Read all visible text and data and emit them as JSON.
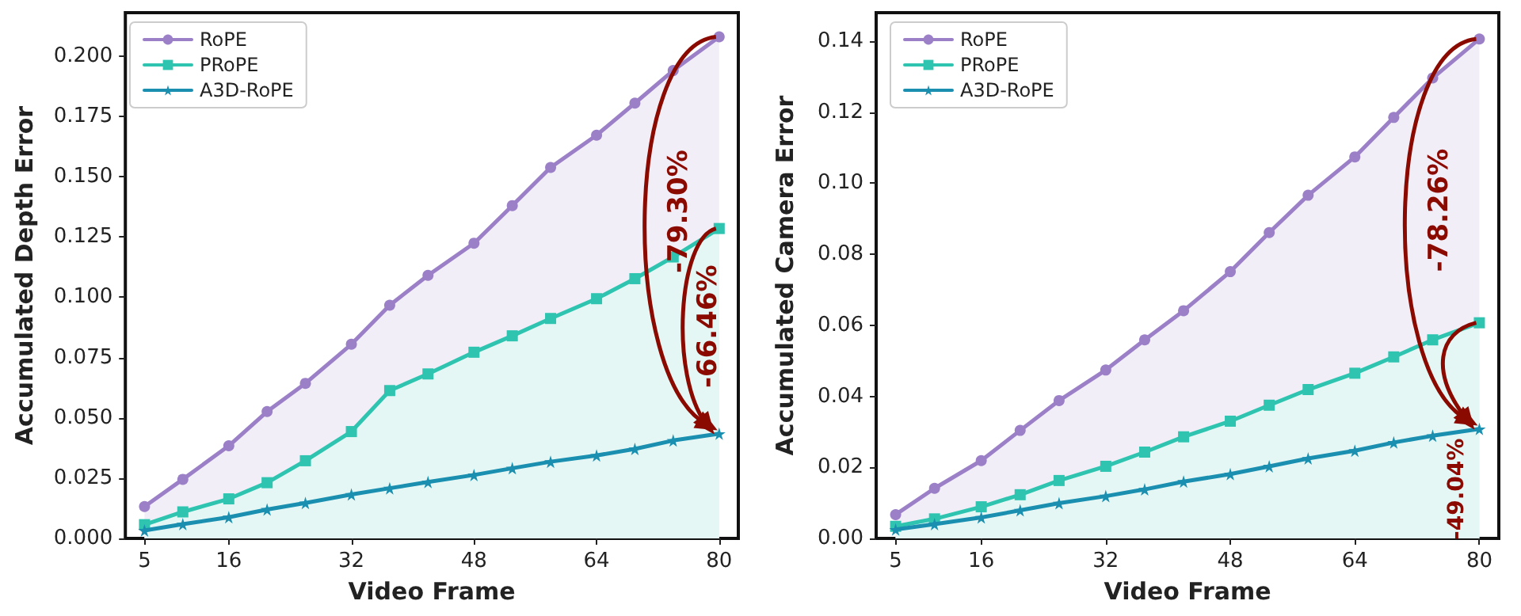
{
  "chart_data": [
    {
      "type": "line",
      "xlabel": "Video Frame",
      "ylabel": "Accumulated Depth Error",
      "legend": "top left",
      "grid": false,
      "line_style": "solid",
      "x": [
        5,
        10,
        16,
        21,
        26,
        32,
        37,
        42,
        48,
        53,
        58,
        64,
        69,
        74,
        80
      ],
      "xlim": [
        2.5,
        82.5
      ],
      "xticks": [
        5,
        16,
        32,
        48,
        64,
        80
      ],
      "ylim": [
        0,
        0.218
      ],
      "yticks": [
        {
          "value": 0,
          "label": "0.000"
        },
        {
          "value": 0.025,
          "label": "0.025"
        },
        {
          "value": 0.05,
          "label": "0.050"
        },
        {
          "value": 0.075,
          "label": "0.075"
        },
        {
          "value": 0.1,
          "label": "0.100"
        },
        {
          "value": 0.125,
          "label": "0.125"
        },
        {
          "value": 0.15,
          "label": "0.150"
        },
        {
          "value": 0.175,
          "label": "0.175"
        },
        {
          "value": 0.2,
          "label": "0.200"
        }
      ],
      "series": [
        {
          "name": "RoPE",
          "type": "area",
          "color": "#9b7fc7",
          "marker": "circle",
          "values": [
            0.0132,
            0.0245,
            0.0384,
            0.0526,
            0.0643,
            0.0805,
            0.0967,
            0.1091,
            0.1224,
            0.138,
            0.1538,
            0.1672,
            0.1805,
            0.194,
            0.208
          ]
        },
        {
          "name": "PRoPE",
          "type": "area",
          "color": "#2ec4b0",
          "marker": "square",
          "values": [
            0.0057,
            0.011,
            0.0164,
            0.0231,
            0.0322,
            0.0443,
            0.0613,
            0.0682,
            0.0772,
            0.084,
            0.0912,
            0.0994,
            0.1077,
            0.1167,
            0.1285
          ]
        },
        {
          "name": "A3D-RoPE",
          "color": "#1a8fb0",
          "marker": "star",
          "values": [
            0.0033,
            0.0059,
            0.0088,
            0.012,
            0.0147,
            0.0182,
            0.0208,
            0.0234,
            0.0263,
            0.0291,
            0.0318,
            0.0344,
            0.0371,
            0.0406,
            0.0434
          ]
        }
      ],
      "annotations": [
        "-79.30%",
        {
          "text": "-66.46%",
          "x": 80,
          "y": 0.0434
        }
      ]
    },
    {
      "type": "line",
      "xlabel": "Video Frame",
      "ylabel": "Accumulated Camera Error",
      "legend": "top left",
      "grid": false,
      "line_style": "solid",
      "x": [
        5,
        10,
        16,
        21,
        26,
        32,
        37,
        42,
        48,
        53,
        58,
        64,
        69,
        74,
        80
      ],
      "xlim": [
        2.5,
        82.5
      ],
      "xticks": [
        5,
        16,
        32,
        48,
        64,
        80
      ],
      "ylim": [
        0,
        0.148
      ],
      "yticks": [
        {
          "value": 0,
          "label": "0.00"
        },
        {
          "value": 0.02,
          "label": "0.02"
        },
        {
          "value": 0.04,
          "label": "0.04"
        },
        {
          "value": 0.06,
          "label": "0.06"
        },
        {
          "value": 0.08,
          "label": "0.08"
        },
        {
          "value": 0.1,
          "label": "0.10"
        },
        {
          "value": 0.12,
          "label": "0.12"
        },
        {
          "value": 0.14,
          "label": "0.14"
        }
      ],
      "series": [
        {
          "name": "RoPE",
          "type": "area",
          "color": "#9b7fc7",
          "marker": "circle",
          "values": [
            0.0067,
            0.0141,
            0.0219,
            0.0304,
            0.0388,
            0.0474,
            0.0559,
            0.0641,
            0.0751,
            0.0861,
            0.0966,
            0.1074,
            0.1185,
            0.1296,
            0.1406
          ]
        },
        {
          "name": "PRoPE",
          "type": "area",
          "color": "#2ec4b0",
          "marker": "square",
          "values": [
            0.0034,
            0.0055,
            0.0089,
            0.0123,
            0.0163,
            0.0203,
            0.0243,
            0.0286,
            0.033,
            0.0375,
            0.0419,
            0.0465,
            0.0511,
            0.0559,
            0.0607
          ]
        },
        {
          "name": "A3D-RoPE",
          "color": "#1a8fb0",
          "marker": "star",
          "values": [
            0.0025,
            0.004,
            0.0059,
            0.0079,
            0.0099,
            0.0119,
            0.0138,
            0.016,
            0.0181,
            0.0203,
            0.0225,
            0.0247,
            0.027,
            0.0289,
            0.0308
          ]
        }
      ],
      "annotations": [
        "-78.26%",
        {
          "text": "-49.04%",
          "x": 80,
          "y": 0.0308
        }
      ]
    }
  ]
}
